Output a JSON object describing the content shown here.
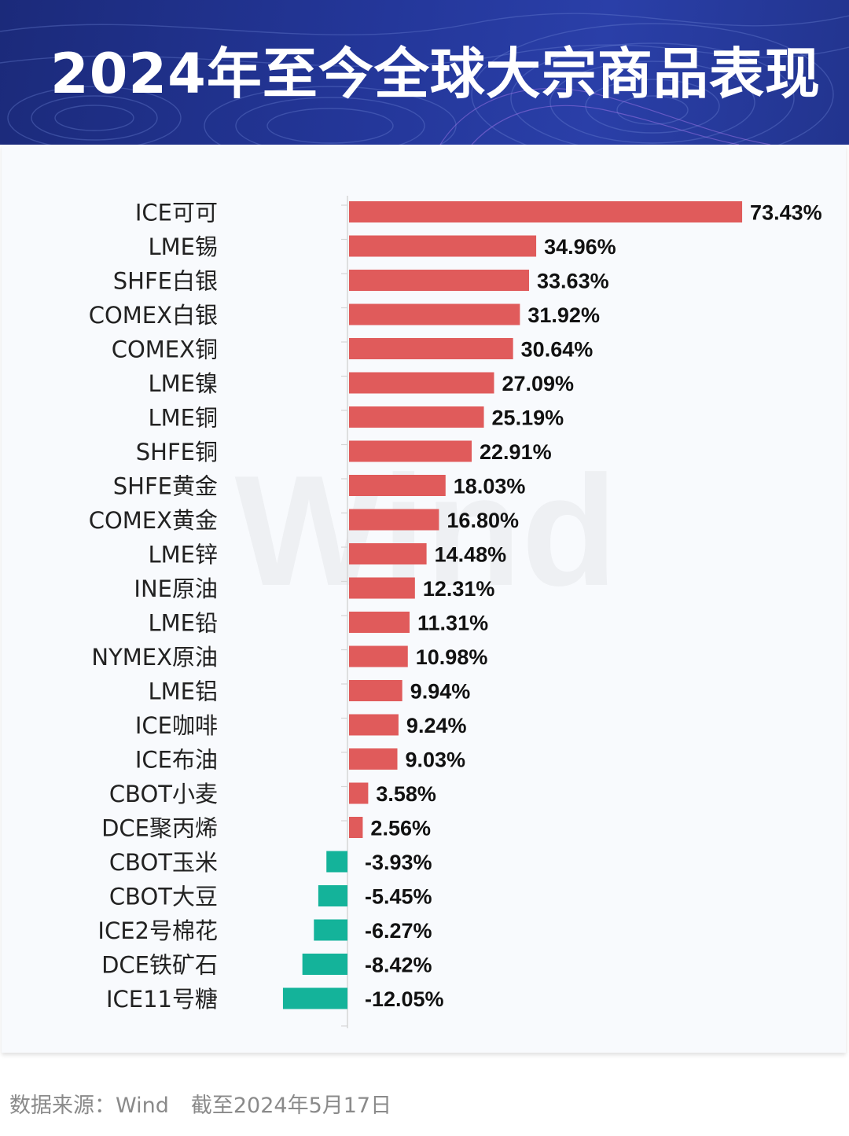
{
  "header": {
    "title": "2024年至今全球大宗商品表现"
  },
  "watermark": "Wind",
  "colors": {
    "positive": "#e05b5b",
    "negative": "#14b39a",
    "header_bg": "#24379a"
  },
  "chart_data": {
    "type": "bar",
    "orientation": "horizontal",
    "unit": "%",
    "categories": [
      "ICE可可",
      "LME锡",
      "SHFE白银",
      "COMEX白银",
      "COMEX铜",
      "LME镍",
      "LME铜",
      "SHFE铜",
      "SHFE黄金",
      "COMEX黄金",
      "LME锌",
      "INE原油",
      "LME铅",
      "NYMEX原油",
      "LME铝",
      "ICE咖啡",
      "ICE布油",
      "CBOT小麦",
      "DCE聚丙烯",
      "CBOT玉米",
      "CBOT大豆",
      "ICE2号棉花",
      "DCE铁矿石",
      "ICE11号糖"
    ],
    "values": [
      73.43,
      34.96,
      33.63,
      31.92,
      30.64,
      27.09,
      25.19,
      22.91,
      18.03,
      16.8,
      14.48,
      12.31,
      11.31,
      10.98,
      9.94,
      9.24,
      9.03,
      3.58,
      2.56,
      -3.93,
      -5.45,
      -6.27,
      -8.42,
      -12.05
    ],
    "labels": [
      "73.43%",
      "34.96%",
      "33.63%",
      "31.92%",
      "30.64%",
      "27.09%",
      "25.19%",
      "22.91%",
      "18.03%",
      "16.80%",
      "14.48%",
      "12.31%",
      "11.31%",
      "10.98%",
      "9.94%",
      "9.24%",
      "9.03%",
      "3.58%",
      "2.56%",
      "-3.93%",
      "-5.45%",
      "-6.27%",
      "-8.42%",
      "-12.05%"
    ],
    "xlim": [
      -12.05,
      73.43
    ],
    "grid": false,
    "legend": "none"
  },
  "footer": {
    "source": "数据来源：Wind",
    "date": "截至2024年5月17日"
  }
}
